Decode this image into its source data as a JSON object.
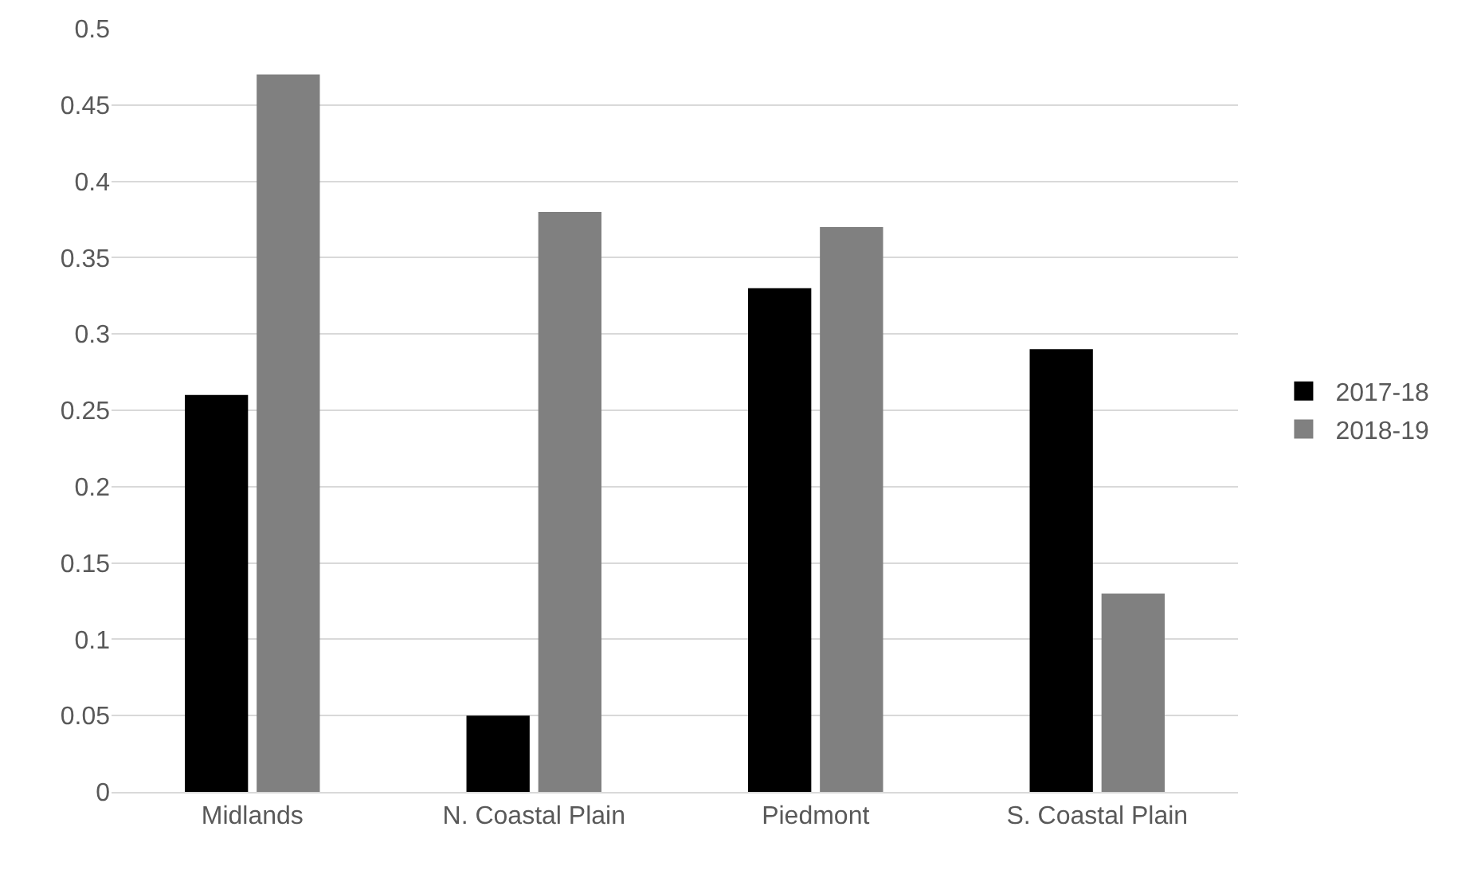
{
  "chart_data": {
    "type": "bar",
    "categories": [
      "Midlands",
      "N. Coastal Plain",
      "Piedmont",
      "S. Coastal Plain"
    ],
    "series": [
      {
        "name": "2017-18",
        "color": "#000000",
        "values": [
          0.26,
          0.05,
          0.33,
          0.29
        ]
      },
      {
        "name": "2018-19",
        "color": "#808080",
        "values": [
          0.47,
          0.38,
          0.37,
          0.13
        ]
      }
    ],
    "ylim": [
      0,
      0.5
    ],
    "yticks": [
      0,
      0.05,
      0.1,
      0.15,
      0.2,
      0.25,
      0.3,
      0.35,
      0.4,
      0.45,
      0.5
    ],
    "grid": "y",
    "legend": "right"
  }
}
